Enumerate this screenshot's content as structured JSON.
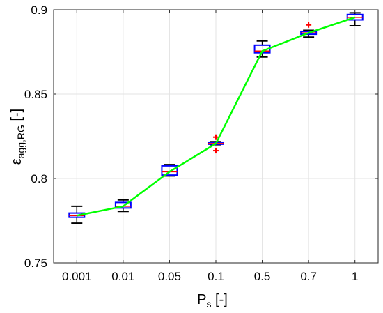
{
  "chart_data": {
    "type": "box",
    "title": "",
    "xlabel": "Ps [-]",
    "ylabel": "εagg,RG [-]",
    "xlabel_parts": {
      "main": "P",
      "sub": "s",
      "rest": " [-]"
    },
    "ylabel_parts": {
      "main": "ε",
      "sub": "agg,RG",
      "rest": " [-]"
    },
    "ylim": [
      0.75,
      0.9
    ],
    "yticks": [
      "0.75",
      "0.8",
      "0.85",
      "0.9"
    ],
    "yticks_values": [
      0.75,
      0.8,
      0.85,
      0.9
    ],
    "categories": [
      "0.001",
      "0.01",
      "0.05",
      "0.1",
      "0.5",
      "0.7",
      "1"
    ],
    "grid": true,
    "boxes": [
      {
        "category": "0.001",
        "whisker_low": 0.7735,
        "q1": 0.777,
        "median": 0.778,
        "q3": 0.7795,
        "whisker_high": 0.7835,
        "outliers": []
      },
      {
        "category": "0.01",
        "whisker_low": 0.7805,
        "q1": 0.7825,
        "median": 0.7835,
        "q3": 0.7858,
        "whisker_high": 0.7873,
        "outliers": []
      },
      {
        "category": "0.05",
        "whisker_low": 0.8015,
        "q1": 0.802,
        "median": 0.804,
        "q3": 0.8075,
        "whisker_high": 0.8082,
        "outliers": []
      },
      {
        "category": "0.1",
        "whisker_low": 0.82,
        "q1": 0.8203,
        "median": 0.8207,
        "q3": 0.8215,
        "whisker_high": 0.8218,
        "outliers": [
          0.8245,
          0.8165
        ]
      },
      {
        "category": "0.5",
        "whisker_low": 0.872,
        "q1": 0.8745,
        "median": 0.8755,
        "q3": 0.879,
        "whisker_high": 0.8815,
        "outliers": []
      },
      {
        "category": "0.7",
        "whisker_low": 0.8838,
        "q1": 0.8855,
        "median": 0.8863,
        "q3": 0.8872,
        "whisker_high": 0.8878,
        "outliers": [
          0.891
        ]
      },
      {
        "category": "1",
        "whisker_low": 0.8905,
        "q1": 0.894,
        "median": 0.8955,
        "q3": 0.8972,
        "whisker_high": 0.8982,
        "outliers": []
      }
    ],
    "series": [
      {
        "values": [
          0.778,
          0.7835,
          0.804,
          0.8207,
          0.8755,
          0.8863,
          0.8955
        ],
        "color": "#00ff00"
      }
    ],
    "colors": {
      "box": "#0000ff",
      "median": "#ff0000",
      "whisker": "#000000",
      "outlier": "#ff0000",
      "line": "#00ff00",
      "grid": "#e3e3e3"
    }
  }
}
